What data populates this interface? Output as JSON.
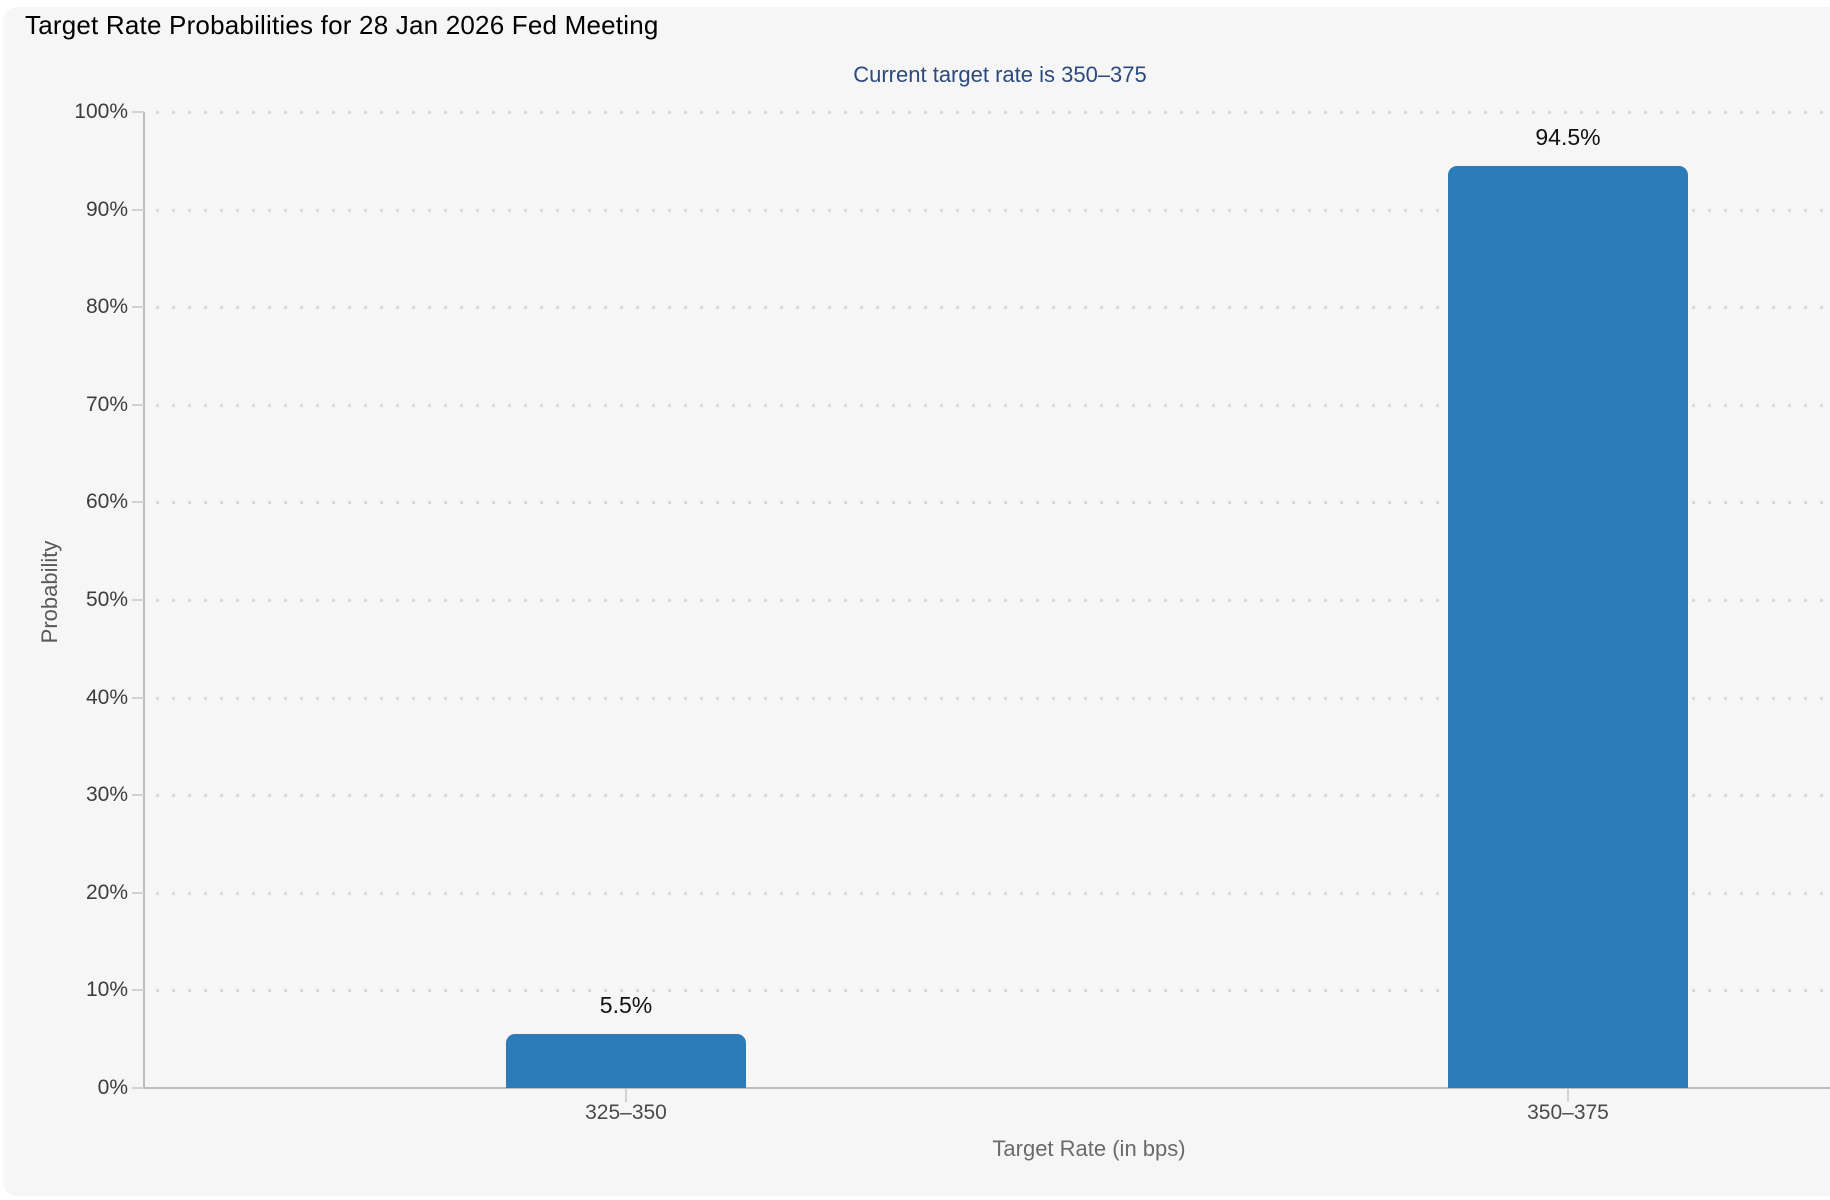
{
  "chart_data": {
    "type": "bar",
    "title": "Target Rate Probabilities for 28 Jan 2026 Fed Meeting",
    "subtitle": "Current target rate is 350–375",
    "categories": [
      "325–350",
      "350–375"
    ],
    "values": [
      5.5,
      94.5
    ],
    "value_labels": [
      "5.5%",
      "94.5%"
    ],
    "xlabel": "Target Rate (in bps)",
    "ylabel": "Probability",
    "ylim": [
      0,
      100
    ],
    "ytick_step": 10,
    "ytick_labels": [
      "0%",
      "10%",
      "20%",
      "30%",
      "40%",
      "50%",
      "60%",
      "70%",
      "80%",
      "90%",
      "100%"
    ],
    "grid": "dotted-horizontal",
    "legend": "none",
    "bar_color": "#2b7cb9"
  },
  "colors": {
    "page_bg": "#ffffff",
    "panel_bg": "#f6f6f6",
    "title": "#000000",
    "subtitle": "#2c4a7c",
    "bar": "#2b7cb9",
    "grid_dot": "#d9d9d9",
    "axis_line": "#bdbdbd",
    "ytick_label": "#3d3d3d",
    "category_label": "#4a4a4a",
    "axis_title": "#666666",
    "value_label": "#111111"
  }
}
